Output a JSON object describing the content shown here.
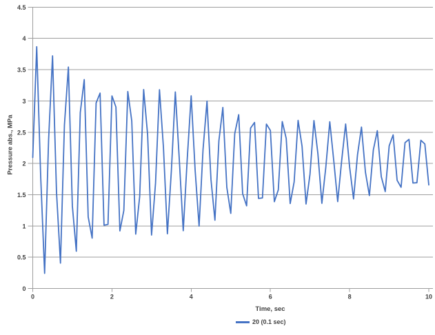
{
  "colors": {
    "background": "#ffffff",
    "line": "#4472C4",
    "grid": "#9d9d9d",
    "axis": "#9d9d9d",
    "text": "#404040"
  },
  "chart_data": {
    "type": "line",
    "title": "",
    "xlabel": "Time, sec",
    "ylabel": "Pressure abs., MPa",
    "xlim": [
      0,
      10
    ],
    "ylim": [
      0,
      4.5
    ],
    "xticks": [
      "0",
      "2",
      "4",
      "6",
      "8",
      "10"
    ],
    "yticks": [
      "0",
      "0.5",
      "1",
      "1.5",
      "2",
      "2.5",
      "3",
      "3.5",
      "4",
      "4.5"
    ],
    "grid": "horizontal-only",
    "legend_position": "bottom",
    "series": [
      {
        "name": "20 (0.1 sec)",
        "color": "#4472C4",
        "model": {
          "kind": "damped-cosine-sampled",
          "mean_mpa": 2.02,
          "initial_amplitude_mpa": 1.88,
          "decay_per_sec": 0.142,
          "period_sec": 0.39,
          "first_peak_time_sec": 0.095,
          "sample_interval_sec": 0.1,
          "t_start_sec": 0,
          "t_end_sec": 10
        },
        "observed_peaks_t_v": [
          [
            0.1,
            3.88
          ],
          [
            0.5,
            3.66
          ],
          [
            0.9,
            3.36
          ],
          [
            1.3,
            3.45
          ],
          [
            1.7,
            3.22
          ],
          [
            2.1,
            3.23
          ],
          [
            2.5,
            3.17
          ],
          [
            2.9,
            3.01
          ],
          [
            3.3,
            3.04
          ],
          [
            3.7,
            2.93
          ],
          [
            4.1,
            2.95
          ],
          [
            4.5,
            2.85
          ],
          [
            4.9,
            2.76
          ],
          [
            5.3,
            2.77
          ],
          [
            5.7,
            2.71
          ],
          [
            6.1,
            2.7
          ],
          [
            6.5,
            2.63
          ],
          [
            7.0,
            2.6
          ],
          [
            7.4,
            2.63
          ],
          [
            7.8,
            2.58
          ],
          [
            8.2,
            2.52
          ],
          [
            8.6,
            2.53
          ],
          [
            8.9,
            2.5
          ],
          [
            9.3,
            2.51
          ],
          [
            9.7,
            2.48
          ]
        ],
        "observed_troughs_t_v": [
          [
            0.3,
            0.23
          ],
          [
            0.7,
            0.51
          ],
          [
            1.1,
            0.44
          ],
          [
            1.5,
            0.66
          ],
          [
            1.9,
            0.84
          ],
          [
            2.3,
            1.02
          ],
          [
            2.7,
            1.13
          ],
          [
            3.1,
            1.1
          ],
          [
            3.5,
            1.22
          ],
          [
            3.9,
            1.28
          ],
          [
            7.2,
            1.4
          ],
          [
            9.1,
            1.53
          ],
          [
            9.5,
            1.55
          ],
          [
            9.9,
            1.52
          ]
        ],
        "start_value_mpa": 2.1
      }
    ]
  },
  "legend": {
    "label": "20 (0.1 sec)"
  }
}
